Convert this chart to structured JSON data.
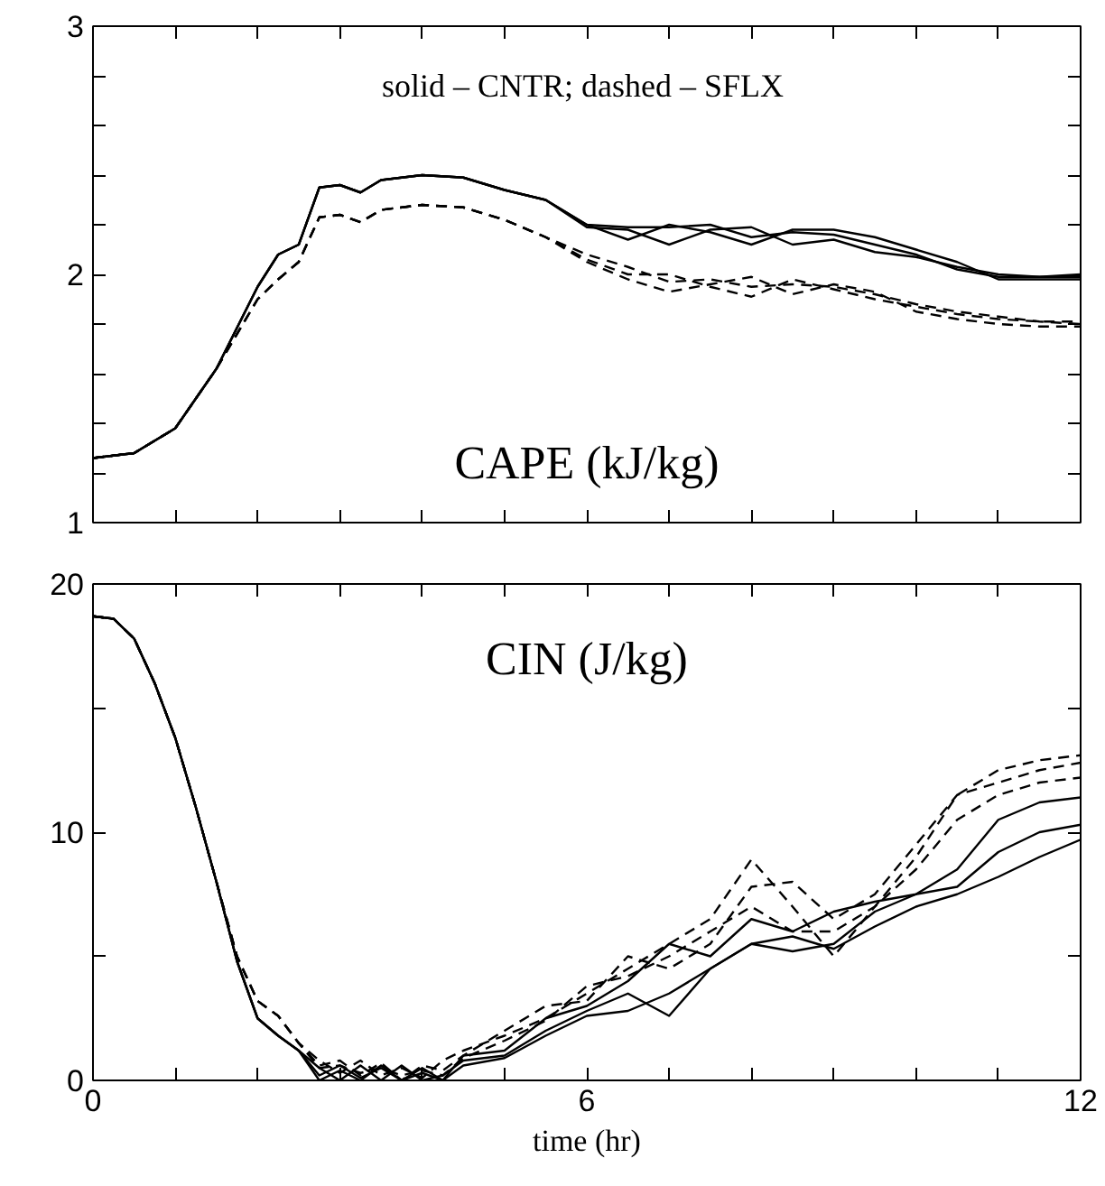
{
  "chart_data": [
    {
      "type": "line",
      "title": "CAPE (kJ/kg)",
      "annotations": [
        "solid – CNTR;  dashed – SFLX"
      ],
      "xlim": [
        0,
        12
      ],
      "ylim": [
        1,
        3
      ],
      "xticks": [
        0,
        {
          "value": 1,
          "label": null
        },
        {
          "value": 2,
          "label": null
        },
        {
          "value": 3,
          "label": null
        },
        {
          "value": 4,
          "label": null
        },
        {
          "value": 5,
          "label": null
        },
        6,
        {
          "value": 7,
          "label": null
        },
        {
          "value": 8,
          "label": null
        },
        {
          "value": 9,
          "label": null
        },
        {
          "value": 10,
          "label": null
        },
        {
          "value": 11,
          "label": null
        },
        12
      ],
      "yticks": [
        1,
        {
          "value": 1.2,
          "label": null
        },
        {
          "value": 1.4,
          "label": null
        },
        {
          "value": 1.6,
          "label": null
        },
        {
          "value": 1.8,
          "label": null
        },
        2,
        {
          "value": 2.2,
          "label": null
        },
        {
          "value": 2.4,
          "label": null
        },
        {
          "value": 2.6,
          "label": null
        },
        {
          "value": 2.8,
          "label": null
        },
        3
      ],
      "tick_labels": "y",
      "grid": false,
      "x": [
        0,
        0.5,
        1,
        1.5,
        2,
        2.25,
        2.5,
        2.75,
        3,
        3.25,
        3.5,
        4,
        4.5,
        5,
        5.5,
        6,
        6.5,
        7,
        7.5,
        8,
        8.5,
        9,
        9.5,
        10,
        10.5,
        11,
        11.5,
        12
      ],
      "series": [
        {
          "color": "#000000",
          "line_style": "solid",
          "values": [
            1.26,
            1.28,
            1.38,
            1.62,
            1.95,
            2.08,
            2.12,
            2.35,
            2.36,
            2.33,
            2.38,
            2.4,
            2.39,
            2.34,
            2.3,
            2.2,
            2.19,
            2.19,
            2.2,
            2.15,
            2.17,
            2.16,
            2.12,
            2.08,
            2.02,
            1.99,
            1.99,
            1.99
          ]
        },
        {
          "color": "#000000",
          "line_style": "solid",
          "values": [
            1.26,
            1.28,
            1.38,
            1.62,
            1.95,
            2.08,
            2.12,
            2.35,
            2.36,
            2.33,
            2.38,
            2.4,
            2.39,
            2.34,
            2.3,
            2.19,
            2.18,
            2.12,
            2.18,
            2.19,
            2.12,
            2.14,
            2.09,
            2.07,
            2.03,
            2.0,
            1.99,
            2.0
          ]
        },
        {
          "color": "#000000",
          "line_style": "solid",
          "values": [
            1.26,
            1.28,
            1.38,
            1.62,
            1.95,
            2.08,
            2.12,
            2.35,
            2.36,
            2.33,
            2.38,
            2.4,
            2.39,
            2.34,
            2.3,
            2.2,
            2.14,
            2.2,
            2.17,
            2.12,
            2.18,
            2.18,
            2.15,
            2.1,
            2.05,
            1.98,
            1.98,
            1.98
          ]
        },
        {
          "color": "#000000",
          "line_style": "dashed",
          "values": [
            1.26,
            1.28,
            1.38,
            1.62,
            1.9,
            1.98,
            2.05,
            2.23,
            2.24,
            2.21,
            2.26,
            2.28,
            2.27,
            2.22,
            2.15,
            2.08,
            2.03,
            1.97,
            1.98,
            1.95,
            1.96,
            1.95,
            1.92,
            1.88,
            1.85,
            1.83,
            1.81,
            1.8
          ]
        },
        {
          "color": "#000000",
          "line_style": "dashed",
          "values": [
            1.26,
            1.28,
            1.38,
            1.62,
            1.9,
            1.98,
            2.05,
            2.23,
            2.24,
            2.21,
            2.26,
            2.28,
            2.27,
            2.22,
            2.15,
            2.06,
            2.0,
            2.0,
            1.95,
            1.91,
            1.98,
            1.94,
            1.9,
            1.87,
            1.84,
            1.82,
            1.81,
            1.81
          ]
        },
        {
          "color": "#000000",
          "line_style": "dashed",
          "values": [
            1.26,
            1.28,
            1.38,
            1.62,
            1.9,
            1.98,
            2.05,
            2.23,
            2.24,
            2.21,
            2.26,
            2.28,
            2.27,
            2.22,
            2.15,
            2.05,
            1.98,
            1.93,
            1.96,
            1.99,
            1.92,
            1.96,
            1.93,
            1.85,
            1.82,
            1.8,
            1.79,
            1.79
          ]
        }
      ]
    },
    {
      "type": "line",
      "title": "CIN (J/kg)",
      "xlabel": "time (hr)",
      "xlim": [
        0,
        12
      ],
      "ylim": [
        0,
        20
      ],
      "xticks": [
        0,
        {
          "value": 1,
          "label": null
        },
        {
          "value": 2,
          "label": null
        },
        {
          "value": 3,
          "label": null
        },
        {
          "value": 4,
          "label": null
        },
        {
          "value": 5,
          "label": null
        },
        6,
        {
          "value": 7,
          "label": null
        },
        {
          "value": 8,
          "label": null
        },
        {
          "value": 9,
          "label": null
        },
        {
          "value": 10,
          "label": null
        },
        {
          "value": 11,
          "label": null
        },
        12
      ],
      "yticks": [
        0,
        {
          "value": 5,
          "label": null
        },
        10,
        {
          "value": 15,
          "label": null
        },
        20
      ],
      "grid": false,
      "x": [
        0,
        0.25,
        0.5,
        0.75,
        1,
        1.25,
        1.5,
        1.75,
        2,
        2.25,
        2.5,
        2.75,
        3,
        3.25,
        3.5,
        3.75,
        4,
        4.25,
        4.5,
        5,
        5.5,
        6,
        6.5,
        7,
        7.5,
        8,
        8.5,
        9,
        9.5,
        10,
        10.5,
        11,
        11.5,
        12
      ],
      "series": [
        {
          "color": "#000000",
          "line_style": "solid",
          "values": [
            18.7,
            18.6,
            17.8,
            16.0,
            13.8,
            11.0,
            8.0,
            4.8,
            2.5,
            1.8,
            1.2,
            0.2,
            0.6,
            0.1,
            0.5,
            0.0,
            0.3,
            0.0,
            1.0,
            1.2,
            2.5,
            3.0,
            4.0,
            5.5,
            5.0,
            6.5,
            6.0,
            6.8,
            7.2,
            7.5,
            8.5,
            10.5,
            11.2,
            11.4
          ]
        },
        {
          "color": "#000000",
          "line_style": "solid",
          "values": [
            18.7,
            18.6,
            17.8,
            16.0,
            13.8,
            11.0,
            8.0,
            4.8,
            2.5,
            1.8,
            1.2,
            0.5,
            0.0,
            0.6,
            0.0,
            0.6,
            0.0,
            0.2,
            0.8,
            1.0,
            2.0,
            2.8,
            3.5,
            2.6,
            4.5,
            5.5,
            5.2,
            5.5,
            6.8,
            7.5,
            7.8,
            9.2,
            10.0,
            10.3
          ]
        },
        {
          "color": "#000000",
          "line_style": "solid",
          "values": [
            18.7,
            18.6,
            17.8,
            16.0,
            13.8,
            11.0,
            8.0,
            4.8,
            2.5,
            1.8,
            1.2,
            0.0,
            0.4,
            0.0,
            0.6,
            0.0,
            0.5,
            0.0,
            0.6,
            0.9,
            1.8,
            2.6,
            2.8,
            3.5,
            4.5,
            5.5,
            5.8,
            5.3,
            6.2,
            7.0,
            7.5,
            8.2,
            9.0,
            9.7
          ]
        },
        {
          "color": "#000000",
          "line_style": "dashed",
          "values": [
            18.7,
            18.6,
            17.8,
            16.0,
            13.8,
            11.0,
            8.0,
            5.0,
            3.2,
            2.6,
            1.5,
            0.8,
            0.3,
            0.8,
            0.2,
            0.5,
            0.1,
            0.8,
            1.2,
            1.8,
            2.5,
            3.5,
            4.5,
            5.5,
            6.5,
            8.9,
            7.0,
            5.0,
            7.0,
            9.0,
            11.5,
            12.5,
            12.9,
            13.1
          ]
        },
        {
          "color": "#000000",
          "line_style": "dashed",
          "values": [
            18.7,
            18.6,
            17.8,
            16.0,
            13.8,
            11.0,
            8.0,
            5.0,
            3.2,
            2.6,
            1.5,
            0.6,
            0.8,
            0.2,
            0.7,
            0.0,
            0.6,
            0.4,
            1.0,
            2.0,
            3.0,
            3.2,
            5.0,
            4.5,
            5.5,
            7.8,
            8.0,
            6.5,
            7.5,
            9.5,
            11.5,
            12.0,
            12.5,
            12.8
          ]
        },
        {
          "color": "#000000",
          "line_style": "dashed",
          "values": [
            18.7,
            18.6,
            17.8,
            16.0,
            13.8,
            11.0,
            8.0,
            5.0,
            3.2,
            2.6,
            1.5,
            0.5,
            0.6,
            0.3,
            0.5,
            0.2,
            0.4,
            0.2,
            0.9,
            1.6,
            2.4,
            3.8,
            4.2,
            5.0,
            6.0,
            7.0,
            6.0,
            6.0,
            7.0,
            8.5,
            10.5,
            11.5,
            12.0,
            12.2
          ]
        }
      ]
    }
  ]
}
